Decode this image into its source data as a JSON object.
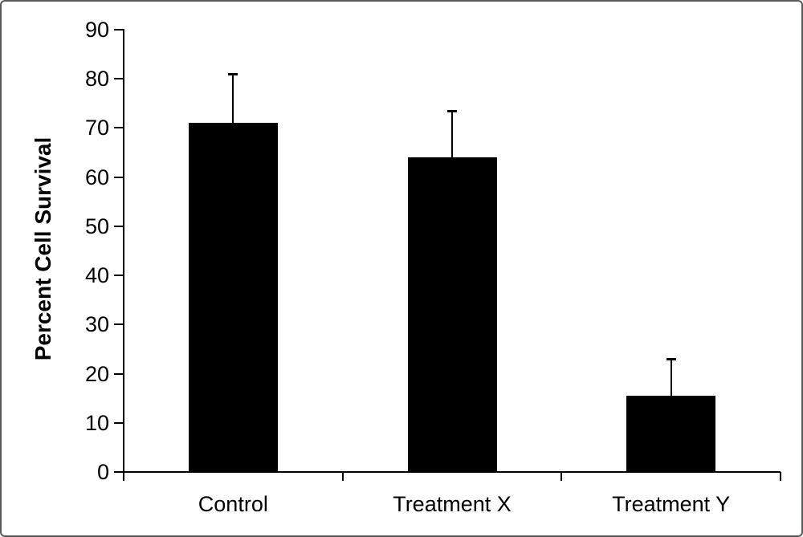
{
  "figure": {
    "background": "#ffffff",
    "border_color": "#58595b"
  },
  "chart_data": {
    "type": "bar",
    "categories": [
      "Control",
      "Treatment X",
      "Treatment Y"
    ],
    "values": [
      71,
      64,
      15.5
    ],
    "errors_plus": [
      10,
      9.5,
      7.5
    ],
    "title": "",
    "xlabel": "",
    "ylabel": "Percent Cell Survival",
    "ylim": [
      0,
      90
    ],
    "ytick_step": 10,
    "yticks": [
      0,
      10,
      20,
      30,
      40,
      50,
      60,
      70,
      80,
      90
    ],
    "bar_color": "#000000",
    "axis_color": "#000000",
    "grid": false,
    "legend_position": "none"
  }
}
